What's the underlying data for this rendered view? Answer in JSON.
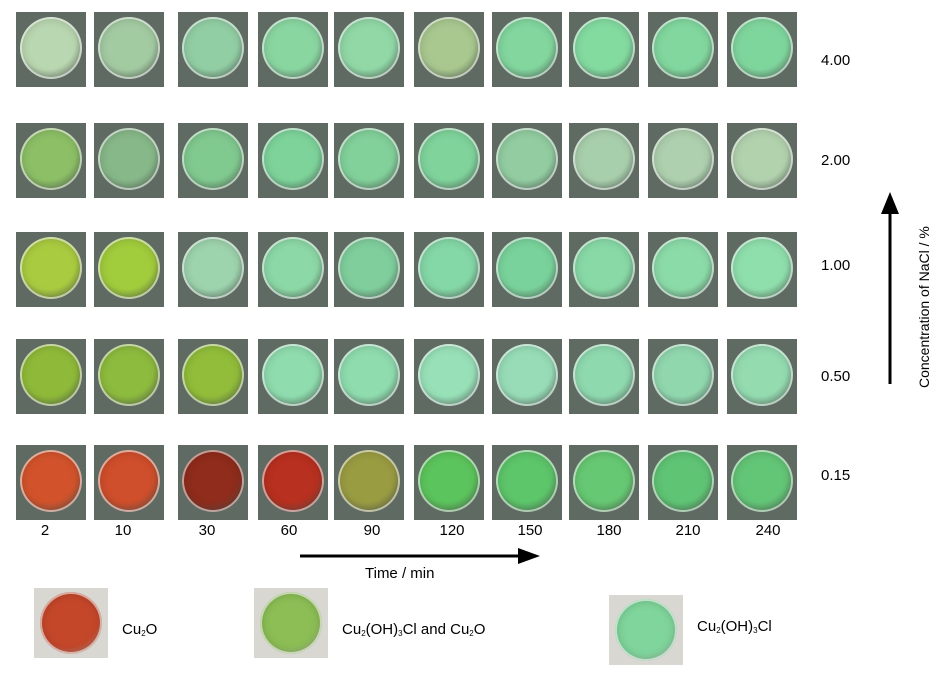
{
  "rows": [
    {
      "concentration": "4.00",
      "colors": [
        "#b9d7b0",
        "#a3cba2",
        "#92cea4",
        "#8ad6a1",
        "#91d8a6",
        "#a8c88f",
        "#82d69e",
        "#83dba0",
        "#81d79e",
        "#7fd69d"
      ]
    },
    {
      "concentration": "2.00",
      "colors": [
        "#8cbf66",
        "#87b889",
        "#80c98f",
        "#7dd39a",
        "#82d09a",
        "#7fd39b",
        "#92cca0",
        "#a8cfac",
        "#aed0ae",
        "#b2d2ae"
      ]
    },
    {
      "concentration": "1.00",
      "colors": [
        "#a9cb40",
        "#a1cc3c",
        "#9dd3ad",
        "#8cd8a6",
        "#7fce9c",
        "#84d7a6",
        "#79d29b",
        "#88d9a6",
        "#8bdba8",
        "#8fdfac"
      ]
    },
    {
      "concentration": "0.50",
      "colors": [
        "#8fba39",
        "#8dbb3e",
        "#91bd3a",
        "#8fdcae",
        "#8fdcae",
        "#98e0b8",
        "#97dcb7",
        "#8fd9af",
        "#90d7ae",
        "#94dbb0"
      ]
    },
    {
      "concentration": "0.15",
      "colors": [
        "#d2532b",
        "#cf4e2b",
        "#8f2c1c",
        "#b8301f",
        "#9a9c42",
        "#5cc45c",
        "#5dc56a",
        "#66c872",
        "#5fc474",
        "#63c576"
      ]
    }
  ],
  "times": [
    "2",
    "10",
    "30",
    "60",
    "90",
    "120",
    "150",
    "180",
    "210",
    "240"
  ],
  "axis": {
    "time_label": "Time / min",
    "conc_label": "Concentration of NaCl / %"
  },
  "legend": [
    {
      "formula_parts": [
        "Cu",
        "2",
        "O"
      ],
      "color": "#c5472a"
    },
    {
      "formula_parts": [
        "Cu",
        "2",
        "(OH)",
        "3",
        "Cl and Cu",
        "2",
        "O"
      ],
      "color": "#8cbe55"
    },
    {
      "formula_parts": [
        "Cu",
        "2",
        "(OH)",
        "3",
        "Cl"
      ],
      "color": "#7fd59b"
    }
  ]
}
